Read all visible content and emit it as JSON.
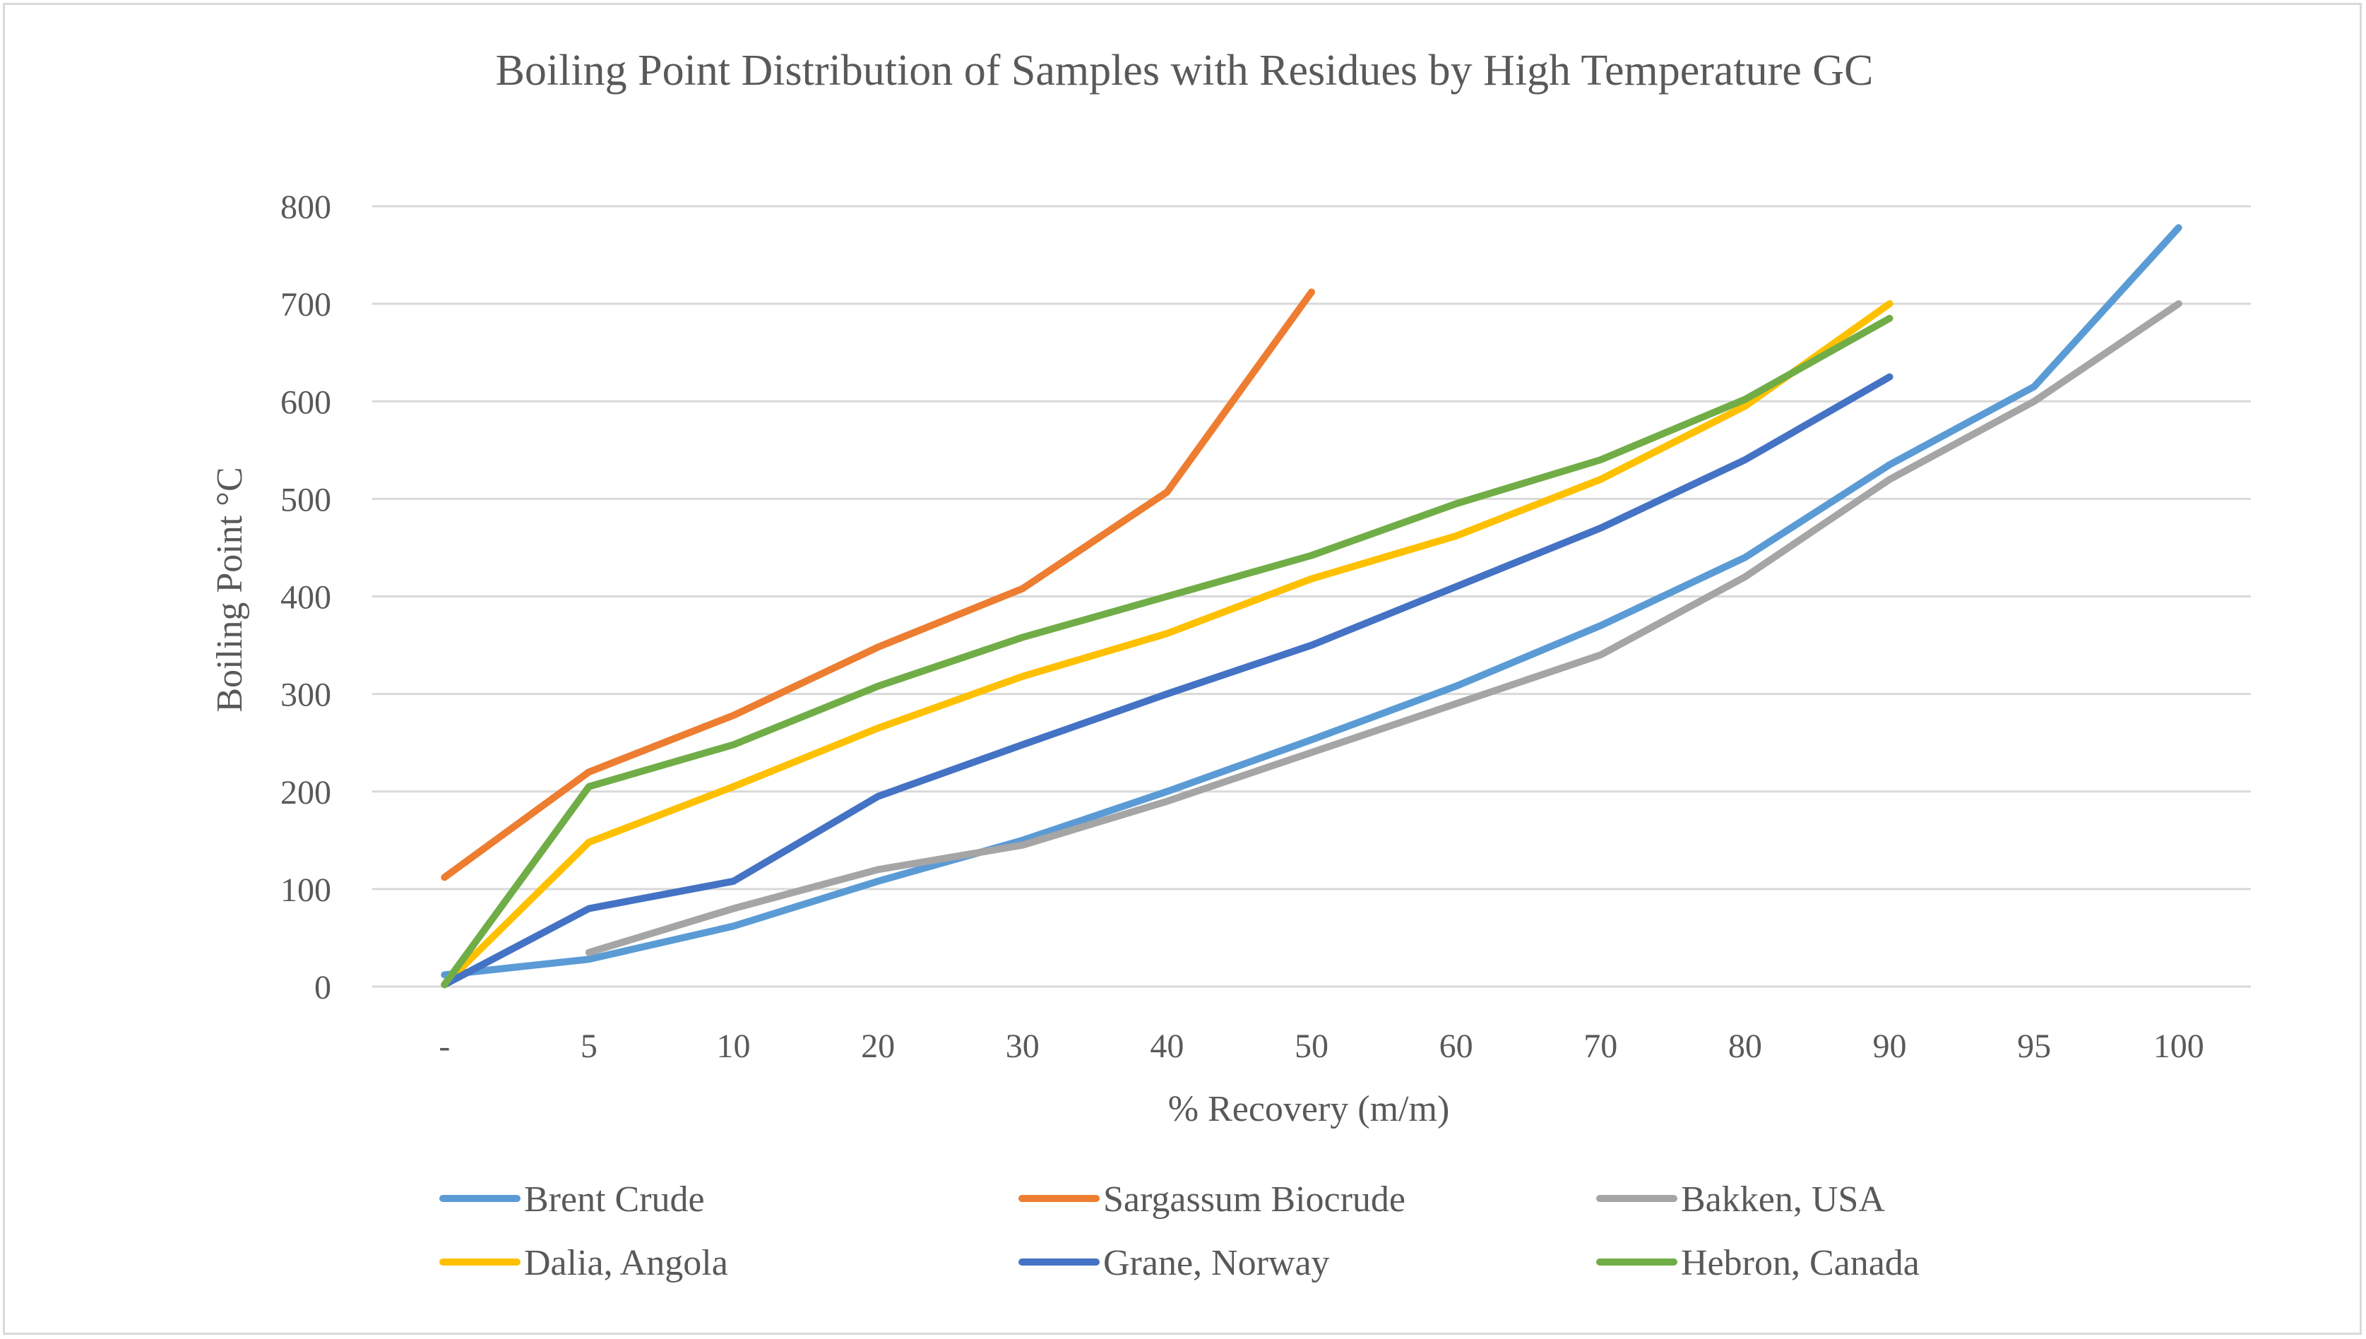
{
  "chart_data": {
    "type": "line",
    "title": "Boiling Point Distribution of Samples with Residues by High Temperature GC",
    "xlabel": "% Recovery (m/m)",
    "ylabel": "Boiling Point °C",
    "ylim": [
      0,
      800
    ],
    "yticks": [
      "0",
      "100",
      "200",
      "300",
      "400",
      "500",
      "600",
      "700",
      "800"
    ],
    "grid": true,
    "legend_position": "bottom",
    "categories": [
      "-",
      "5",
      "10",
      "20",
      "30",
      "40",
      "50",
      "60",
      "70",
      "80",
      "90",
      "95",
      "100"
    ],
    "series": [
      {
        "name": "Brent Crude",
        "color": "#5b9bd5",
        "values": [
          12,
          28,
          62,
          108,
          150,
          200,
          253,
          308,
          370,
          440,
          535,
          615,
          778
        ]
      },
      {
        "name": "Sargassum Biocrude",
        "color": "#ed7d31",
        "values": [
          112,
          220,
          278,
          348,
          408,
          507,
          712,
          null,
          null,
          null,
          null,
          null,
          null
        ]
      },
      {
        "name": "Bakken, USA",
        "color": "#a5a5a5",
        "values": [
          null,
          35,
          80,
          120,
          145,
          190,
          240,
          290,
          340,
          420,
          520,
          600,
          700
        ]
      },
      {
        "name": "Dalia, Angola",
        "color": "#ffc000",
        "values": [
          2,
          148,
          205,
          265,
          318,
          362,
          418,
          462,
          520,
          595,
          700,
          null,
          null
        ]
      },
      {
        "name": "Grane, Norway",
        "color": "#4472c4",
        "values": [
          2,
          80,
          108,
          195,
          248,
          300,
          350,
          410,
          470,
          540,
          625,
          null,
          null
        ]
      },
      {
        "name": "Hebron, Canada",
        "color": "#70ad47",
        "values": [
          2,
          205,
          248,
          308,
          358,
          400,
          442,
          495,
          540,
          602,
          685,
          null,
          null
        ]
      }
    ]
  }
}
